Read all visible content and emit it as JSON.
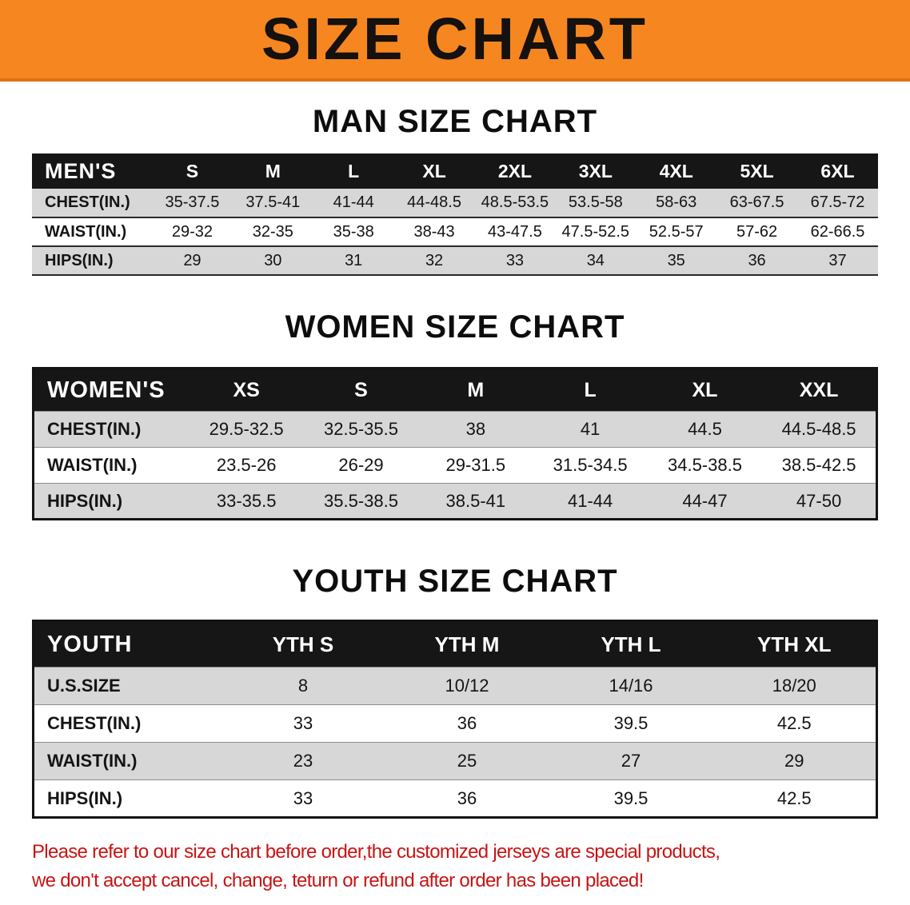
{
  "banner": {
    "title": "SIZE CHART"
  },
  "sections": [
    {
      "heading": "MAN SIZE CHART",
      "table": {
        "header": [
          "MEN'S",
          "S",
          "M",
          "L",
          "XL",
          "2XL",
          "3XL",
          "4XL",
          "5XL",
          "6XL"
        ],
        "rows": [
          [
            "CHEST(IN.)",
            "35-37.5",
            "37.5-41",
            "41-44",
            "44-48.5",
            "48.5-53.5",
            "53.5-58",
            "58-63",
            "63-67.5",
            "67.5-72"
          ],
          [
            "WAIST(IN.)",
            "29-32",
            "32-35",
            "35-38",
            "38-43",
            "43-47.5",
            "47.5-52.5",
            "52.5-57",
            "57-62",
            "62-66.5"
          ],
          [
            "HIPS(IN.)",
            "29",
            "30",
            "31",
            "32",
            "33",
            "34",
            "35",
            "36",
            "37"
          ]
        ]
      }
    },
    {
      "heading": "WOMEN SIZE CHART",
      "table": {
        "header": [
          "WOMEN'S",
          "XS",
          "S",
          "M",
          "L",
          "XL",
          "XXL"
        ],
        "rows": [
          [
            "CHEST(IN.)",
            "29.5-32.5",
            "32.5-35.5",
            "38",
            "41",
            "44.5",
            "44.5-48.5"
          ],
          [
            "WAIST(IN.)",
            "23.5-26",
            "26-29",
            "29-31.5",
            "31.5-34.5",
            "34.5-38.5",
            "38.5-42.5"
          ],
          [
            "HIPS(IN.)",
            "33-35.5",
            "35.5-38.5",
            "38.5-41",
            "41-44",
            "44-47",
            "47-50"
          ]
        ]
      }
    },
    {
      "heading": "YOUTH SIZE CHART",
      "table": {
        "header": [
          "YOUTH",
          "YTH S",
          "YTH M",
          "YTH L",
          "YTH XL"
        ],
        "rows": [
          [
            "U.S.SIZE",
            "8",
            "10/12",
            "14/16",
            "18/20"
          ],
          [
            "CHEST(IN.)",
            "33",
            "36",
            "39.5",
            "42.5"
          ],
          [
            "WAIST(IN.)",
            "23",
            "25",
            "27",
            "29"
          ],
          [
            "HIPS(IN.)",
            "33",
            "36",
            "39.5",
            "42.5"
          ]
        ]
      }
    }
  ],
  "disclaimer": {
    "line1": "Please refer to our size chart before order,the customized jerseys are special products,",
    "line2": "we don't accept cancel, change, teturn or refund after order has been placed!"
  },
  "colors": {
    "banner-orange": "#f6861f",
    "table-header-black": "#161616",
    "row-stripe-gray": "#d7d7d7",
    "disclaimer-red": "#c81414"
  }
}
